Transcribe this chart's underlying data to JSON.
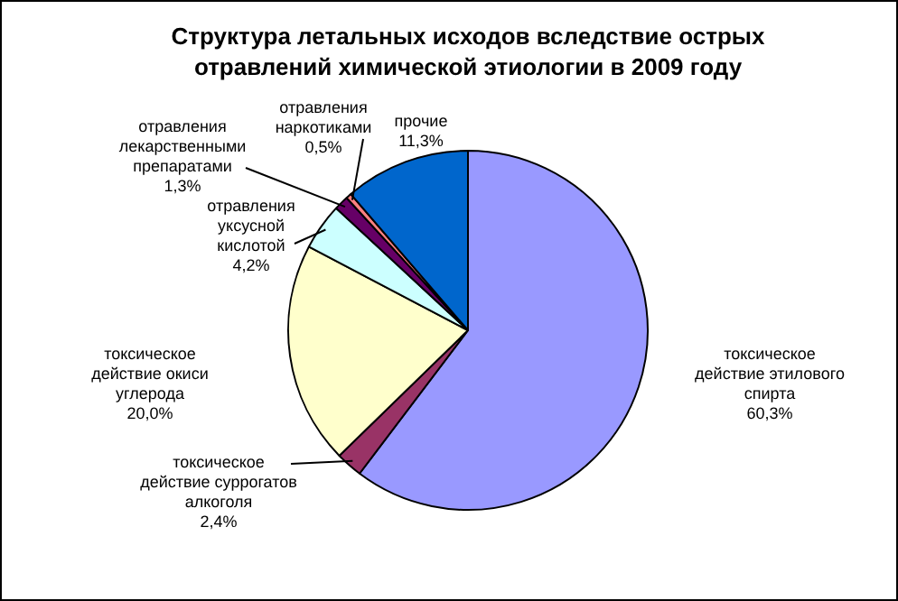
{
  "chart_data": {
    "type": "pie",
    "title": "Структура летальных исходов вследствие острых отравлений химической этиологии в 2009 году",
    "categories": [
      "токсическое действие этилового спирта",
      "токсическое действие суррогатов алкоголя",
      "токсическое действие окиси углерода",
      "отравления уксусной кислотой",
      "отравления лекарственными препаратами",
      "отравления наркотиками",
      "прочие"
    ],
    "values": [
      60.3,
      2.4,
      20.0,
      4.2,
      1.3,
      0.5,
      11.3
    ],
    "value_labels": [
      "60,3%",
      "2,4%",
      "20,0%",
      "4,2%",
      "1,3%",
      "0,5%",
      "11,3%"
    ],
    "colors": [
      "#9999ff",
      "#993366",
      "#ffffcc",
      "#ccffff",
      "#660066",
      "#ff8080",
      "#0066cc"
    ],
    "legend": false
  }
}
